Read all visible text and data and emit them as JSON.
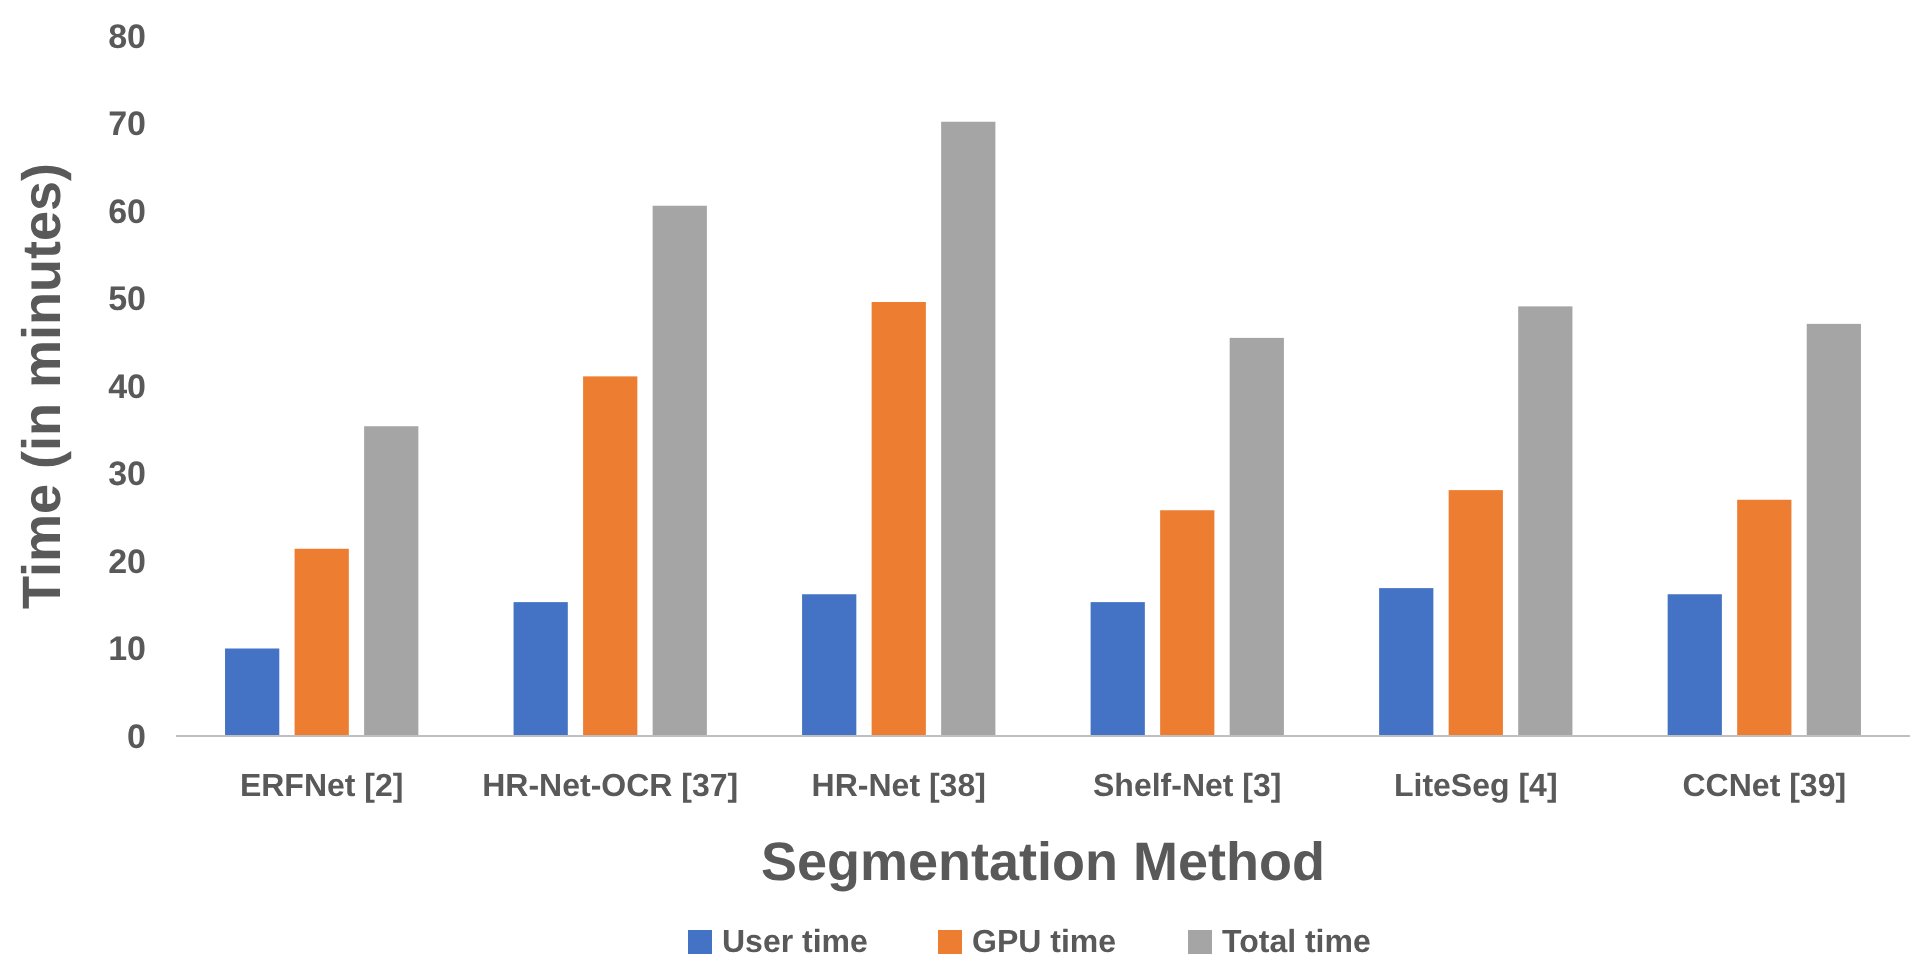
{
  "chart_data": {
    "type": "bar",
    "xlabel": "Segmentation Method",
    "ylabel": "Time (in minutes)",
    "categories": [
      "ERFNet [2]",
      "HR-Net-OCR [37]",
      "HR-Net [38]",
      "Shelf-Net [3]",
      "LiteSeg [4]",
      "CCNet [39]"
    ],
    "series": [
      {
        "name": "User time",
        "color": "#4472c4",
        "values": [
          10,
          15.3,
          16.2,
          15.3,
          16.9,
          16.2
        ]
      },
      {
        "name": "GPU time",
        "color": "#ed7d31",
        "values": [
          21.4,
          41.1,
          49.6,
          25.8,
          28.1,
          27
        ]
      },
      {
        "name": "Total time",
        "color": "#a5a5a5",
        "values": [
          35.4,
          60.6,
          70.2,
          45.5,
          49.1,
          47.1
        ]
      }
    ],
    "ylim": [
      0,
      80
    ],
    "yticks": [
      0,
      10,
      20,
      30,
      40,
      50,
      60,
      70,
      80
    ],
    "grid": false,
    "legend": "bottom"
  }
}
